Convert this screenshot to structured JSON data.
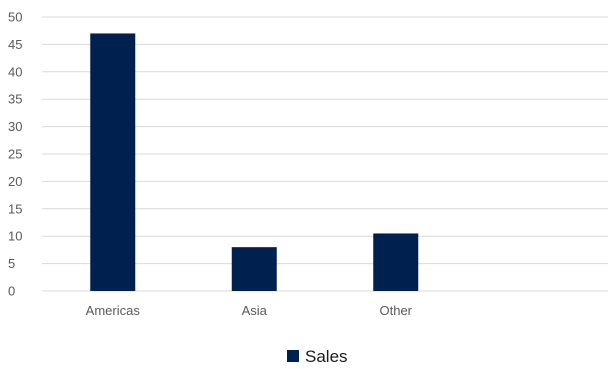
{
  "chart_data": {
    "type": "bar",
    "categories": [
      "Americas",
      "Asia",
      "Other"
    ],
    "series": [
      {
        "name": "Sales",
        "values": [
          47,
          8,
          10.5
        ],
        "color": "#00204f"
      }
    ],
    "title": "",
    "xlabel": "",
    "ylabel": "",
    "ylim": [
      0,
      50
    ],
    "yticks": [
      "0",
      "5",
      "10",
      "15",
      "20",
      "25",
      "30",
      "35",
      "40",
      "45",
      "50"
    ],
    "grid": "horizontal",
    "gridColor": "#d9d9d9",
    "legend": "bottom-center"
  }
}
